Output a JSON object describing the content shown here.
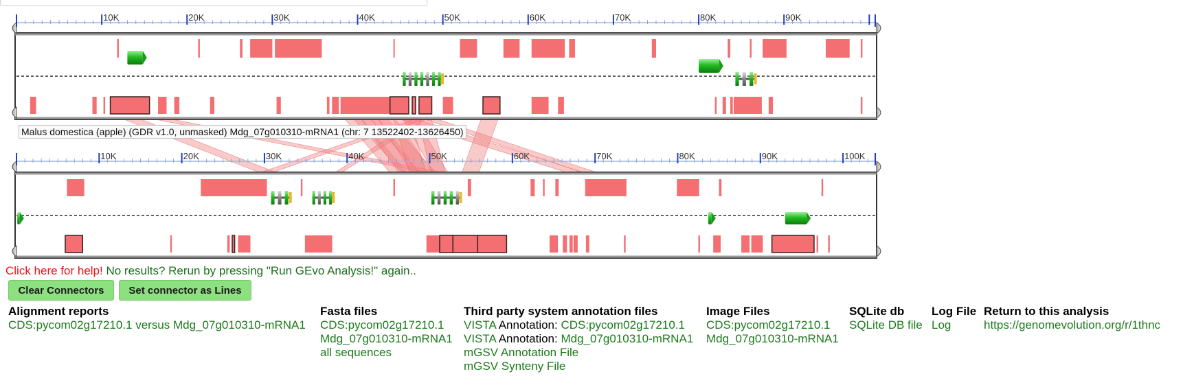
{
  "colors": {
    "feature": "#f46f72",
    "connector": "#f08080",
    "gene": "#22bb22",
    "track_border": "#333333",
    "ruler_tick": "#1f3fbf",
    "help": "#e8151b",
    "link": "#1c7a1c",
    "button": "#8de07f"
  },
  "tracks": [
    {
      "ruler": {
        "ticks": [
          "10K",
          "20K",
          "30K",
          "40K",
          "50K",
          "60K",
          "70K",
          "80K",
          "90K"
        ],
        "max_kb": 100.7
      },
      "features_top": [
        [
          11.8,
          12.0
        ],
        [
          21.3,
          21.5
        ],
        [
          26.2,
          26.5
        ],
        [
          27.4,
          30.0
        ],
        [
          30.3,
          35.8
        ],
        [
          44.2,
          44.3
        ],
        [
          52.0,
          54.0
        ],
        [
          57.1,
          59.0
        ],
        [
          60.4,
          64.3
        ],
        [
          64.8,
          65.5
        ],
        [
          74.5,
          75.0
        ],
        [
          83.4,
          83.7
        ],
        [
          86.0,
          86.2
        ],
        [
          87.5,
          90.3
        ],
        [
          94.9,
          97.7
        ],
        [
          99.0,
          99.2
        ]
      ],
      "features_bottom": [
        [
          1.6,
          2.3
        ],
        [
          8.9,
          9.4
        ],
        [
          10.2,
          10.4
        ],
        [
          11.0,
          15.6
        ],
        [
          16.6,
          17.6
        ],
        [
          18.5,
          19.1
        ],
        [
          22.7,
          23.2
        ],
        [
          30.5,
          31.0
        ],
        [
          36.4,
          36.7
        ],
        [
          37.0,
          37.8
        ],
        [
          38.0,
          43.8
        ],
        [
          43.8,
          46.0
        ],
        [
          46.4,
          46.8
        ],
        [
          47.2,
          48.7
        ],
        [
          50.0,
          51.2
        ],
        [
          54.7,
          56.7
        ],
        [
          60.4,
          62.4
        ],
        [
          63.5,
          64.2
        ],
        [
          81.9,
          82.1
        ],
        [
          82.8,
          83.2
        ],
        [
          83.7,
          84.0
        ],
        [
          84.1,
          87.4
        ],
        [
          88.2,
          88.7
        ],
        [
          99.0,
          99.2
        ]
      ],
      "outlined_bottom": [
        [
          11.0,
          15.6
        ],
        [
          38.0,
          40.8
        ],
        [
          40.8,
          43.8
        ],
        [
          43.8,
          46.0
        ],
        [
          46.4,
          46.8
        ],
        [
          47.2,
          48.7
        ],
        [
          54.7,
          56.7
        ]
      ],
      "genes_top": [
        [
          13.0,
          14.8
        ]
      ],
      "genes_mid": [
        [
          80.0,
          82.4
        ]
      ],
      "genes_lower": [
        [
          45.3,
          50.1
        ],
        [
          84.3,
          86.8
        ]
      ],
      "label": "Malus domestica (apple) (GDR v1.0, unmasked) Mdg_07g010310-mRNA1 (chr: 7 13522402-13626450)"
    },
    {
      "ruler": {
        "ticks": [
          "10K",
          "20K",
          "30K",
          "40K",
          "50K",
          "60K",
          "70K",
          "80K",
          "90K",
          "100K"
        ],
        "max_kb": 103.9
      },
      "features_top": [
        [
          6.1,
          8.2
        ],
        [
          22.3,
          30.3
        ],
        [
          34.4,
          34.6
        ],
        [
          45.6,
          45.8
        ],
        [
          54.6,
          55.0
        ],
        [
          62.2,
          62.7
        ],
        [
          63.7,
          63.9
        ],
        [
          65.2,
          65.6
        ],
        [
          68.8,
          73.8
        ],
        [
          79.9,
          82.6
        ],
        [
          85.0,
          85.3
        ],
        [
          97.4,
          97.6
        ]
      ],
      "features_bottom": [
        [
          5.9,
          8.0
        ],
        [
          18.6,
          18.8
        ],
        [
          25.5,
          25.8
        ],
        [
          26.1,
          26.4
        ],
        [
          26.8,
          28.3
        ],
        [
          34.9,
          38.2
        ],
        [
          49.6,
          51.2
        ],
        [
          51.2,
          52.8
        ],
        [
          52.8,
          55.8
        ],
        [
          55.8,
          59.3
        ],
        [
          64.5,
          65.5
        ],
        [
          66.1,
          66.6
        ],
        [
          66.9,
          67.3
        ],
        [
          67.4,
          67.9
        ],
        [
          68.9,
          69.3
        ],
        [
          73.5,
          73.7
        ],
        [
          82.5,
          82.7
        ],
        [
          84.3,
          85.2
        ],
        [
          87.7,
          88.7
        ],
        [
          88.9,
          90.3
        ],
        [
          91.4,
          96.5
        ],
        [
          96.8,
          97.0
        ],
        [
          98.2,
          98.4
        ]
      ],
      "outlined_bottom": [
        [
          5.9,
          8.0
        ],
        [
          26.1,
          26.4
        ],
        [
          51.2,
          52.8
        ],
        [
          52.8,
          55.8
        ],
        [
          55.8,
          59.3
        ],
        [
          91.4,
          96.5
        ]
      ],
      "genes_top": [
        [
          30.8,
          33.3
        ],
        [
          35.8,
          38.5
        ],
        [
          50.2,
          53.9
        ]
      ],
      "genes_mid": [
        [
          0.1,
          0.4
        ],
        [
          83.7,
          84.1
        ],
        [
          93.0,
          95.6
        ]
      ],
      "genes_lower": []
    }
  ],
  "connectors": [
    [
      11.0,
      13.0,
      50.0,
      52.0
    ],
    [
      13.0,
      15.0,
      91.0,
      93.0
    ],
    [
      38.0,
      40.0,
      52.0,
      54.0
    ],
    [
      39.0,
      41.0,
      54.0,
      56.0
    ],
    [
      40.0,
      42.0,
      52.0,
      55.0
    ],
    [
      41.0,
      43.0,
      56.0,
      58.0
    ],
    [
      42.0,
      44.0,
      53.0,
      56.0
    ],
    [
      43.0,
      45.0,
      92.0,
      94.0
    ],
    [
      44.0,
      46.0,
      50.0,
      52.0
    ],
    [
      45.0,
      46.5,
      55.0,
      57.0
    ],
    [
      46.0,
      47.5,
      92.5,
      94.5
    ],
    [
      47.0,
      48.5,
      52.0,
      54.0
    ],
    [
      48.0,
      49.0,
      26.0,
      26.5
    ],
    [
      48.5,
      49.5,
      6.0,
      8.0
    ],
    [
      54.7,
      56.7,
      51.0,
      53.0
    ]
  ],
  "help_text": "Click here for help!",
  "status_text": " No results? Rerun by pressing \"Run GEvo Analysis!\" again..",
  "buttons": {
    "clear": "Clear Connectors",
    "lines": "Set connector as Lines"
  },
  "columns": {
    "alignment": {
      "title": "Alignment reports",
      "link": "CDS:pycom02g17210.1 versus Mdg_07g010310-mRNA1"
    },
    "fasta": {
      "title": "Fasta files",
      "links": [
        "CDS:pycom02g17210.1",
        "Mdg_07g010310-mRNA1",
        "all sequences"
      ]
    },
    "third_party": {
      "title": "Third party system annotation files",
      "vista1_prefix": "VISTA",
      "vista1_mid": " Annotation: ",
      "vista1_link": "CDS:pycom02g17210.1",
      "vista2_prefix": "VISTA",
      "vista2_mid": " Annotation: ",
      "vista2_link": "Mdg_07g010310-mRNA1",
      "mgsv_annotation": "mGSV Annotation File",
      "mgsv_synteny": "mGSV Synteny File"
    },
    "image": {
      "title": "Image Files",
      "links": [
        "CDS:pycom02g17210.1",
        "Mdg_07g010310-mRNA1"
      ]
    },
    "sqlite": {
      "title": "SQLite db",
      "link": "SQLite DB file"
    },
    "log": {
      "title": "Log File",
      "link": "Log"
    },
    "return": {
      "title": "Return to this analysis",
      "link": "https://genomevolution.org/r/1thnc"
    }
  }
}
